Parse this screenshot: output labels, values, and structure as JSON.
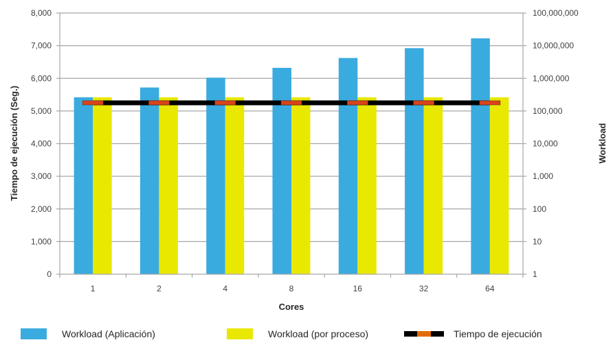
{
  "chart_data": {
    "type": "bar",
    "title": "",
    "xlabel": "Cores",
    "ylabel": "Tiempo de ejecución (Seg.)",
    "ylabel_right": "Workload",
    "categories": [
      "1",
      "2",
      "4",
      "8",
      "16",
      "32",
      "64"
    ],
    "ylim": [
      0,
      8000
    ],
    "y_ticks": [
      "0",
      "1,000",
      "2,000",
      "3,000",
      "4,000",
      "5,000",
      "6,000",
      "7,000",
      "8,000"
    ],
    "y_tick_values": [
      0,
      1000,
      2000,
      3000,
      4000,
      5000,
      6000,
      7000,
      8000
    ],
    "y2_scale": "log",
    "y2lim": [
      1,
      100000000
    ],
    "y2_ticks": [
      "1",
      "10",
      "100",
      "1,000",
      "10,000",
      "100,000",
      "1,000,000",
      "10,000,000",
      "100,000,000"
    ],
    "y2_tick_values": [
      1,
      10,
      100,
      1000,
      10000,
      100000,
      1000000,
      10000000,
      100000000
    ],
    "grid": true,
    "legend_position": "bottom",
    "series": [
      {
        "name": "Workload (Aplicación)",
        "type": "bar",
        "axis": "right",
        "color": "#3aabdf",
        "values": [
          262144,
          524288,
          1048576,
          2097152,
          4194304,
          8388608,
          16777216
        ]
      },
      {
        "name": "Workload (por proceso)",
        "type": "bar",
        "axis": "right",
        "color": "#e8e800",
        "values": [
          262144,
          262144,
          262144,
          262144,
          262144,
          262144,
          262144
        ]
      },
      {
        "name": "Tiempo de ejecución",
        "type": "line",
        "axis": "left",
        "color": "#000000",
        "marker_color": "#d9441c",
        "values": [
          5250,
          5250,
          5250,
          5250,
          5250,
          5250,
          5250
        ]
      }
    ]
  }
}
